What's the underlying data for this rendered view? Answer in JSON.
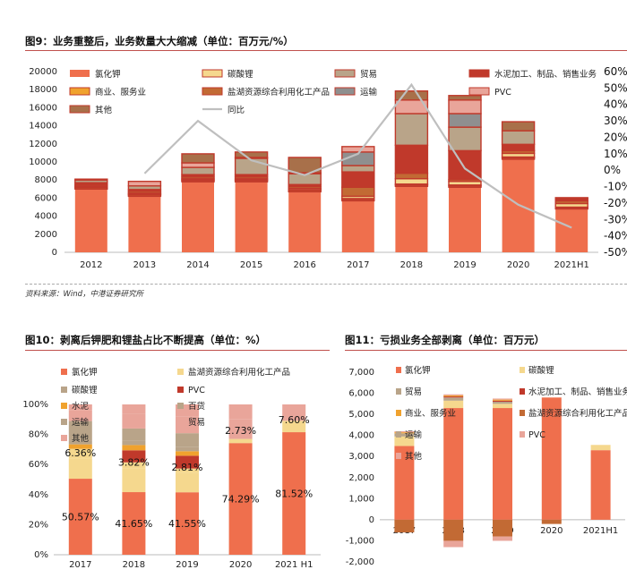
{
  "fig9": {
    "title": "图9：业务重整后，业务数量大大缩减（单位：百万元/%）",
    "source": "资料来源：Wind，中港证券研究所"
  },
  "fig10": {
    "title": "图10：剥离后钾肥和锂盐占比不断提高（单位：%）"
  },
  "fig11": {
    "title": "图11：亏损业务全部剥离（单位：百万元）"
  },
  "colors": {
    "kcl": "#ef6f4d",
    "li2co3": "#f5d88e",
    "trade": "#b9a489",
    "cement": "#c0392b",
    "commerce": "#f0a22e",
    "saltlake": "#c26a34",
    "transport": "#8f8f8f",
    "pvc": "#e9a59a",
    "other": "#a8704a",
    "line": "#bfbfbf",
    "accent": "#c0504d"
  },
  "chart_data": [
    {
      "type": "bar",
      "stacked": true,
      "categories": [
        "2012",
        "2013",
        "2014",
        "2015",
        "2016",
        "2017",
        "2018",
        "2019",
        "2020",
        "2021H1"
      ],
      "ylim": [
        0,
        20000
      ],
      "yticks": [
        "0",
        "2000",
        "4000",
        "6000",
        "8000",
        "10000",
        "12000",
        "14000",
        "16000",
        "18000",
        "20000"
      ],
      "y2lim": [
        -50,
        60
      ],
      "y2ticks": [
        "-50%",
        "-40%",
        "-30%",
        "-20%",
        "-10%",
        "0%",
        "10%",
        "20%",
        "30%",
        "40%",
        "50%",
        "60%"
      ],
      "series": [
        {
          "name": "氯化钾",
          "key": "kcl",
          "values": [
            7000,
            6200,
            7800,
            7800,
            6700,
            5700,
            7300,
            7200,
            10300,
            4800
          ]
        },
        {
          "name": "商业、服务业",
          "key": "commerce",
          "values": [
            150,
            150,
            150,
            150,
            150,
            150,
            150,
            150,
            150,
            100
          ]
        },
        {
          "name": "其他",
          "key": "other",
          "values": [
            100,
            100,
            100,
            100,
            100,
            100,
            100,
            100,
            100,
            100
          ]
        },
        {
          "name": "碳酸锂",
          "key": "li2co3",
          "values": [
            100,
            100,
            150,
            150,
            150,
            250,
            600,
            400,
            400,
            400
          ]
        },
        {
          "name": "盐湖资源综合利用化工产品",
          "key": "saltlake",
          "values": [
            150,
            200,
            200,
            200,
            200,
            1000,
            600,
            200,
            300,
            300
          ]
        },
        {
          "name": "水泥加工、制品、销售业务",
          "key": "cement",
          "values": [
            200,
            200,
            200,
            200,
            200,
            1700,
            3100,
            3200,
            700,
            250
          ]
        },
        {
          "name": "贸易",
          "key": "trade",
          "values": [
            300,
            400,
            800,
            1800,
            1200,
            700,
            3500,
            2600,
            1500,
            0
          ]
        },
        {
          "name": "运输",
          "key": "transport",
          "values": [
            0,
            0,
            0,
            0,
            0,
            1500,
            0,
            1500,
            0,
            0
          ]
        },
        {
          "name": "PVC",
          "key": "pvc",
          "values": [
            0,
            500,
            500,
            100,
            100,
            600,
            1500,
            1500,
            0,
            0
          ]
        },
        {
          "name": "其他",
          "key": "other",
          "values": [
            100,
            0,
            1000,
            600,
            1700,
            0,
            1000,
            500,
            1000,
            100
          ]
        }
      ],
      "line": {
        "name": "同比",
        "y2_values": [
          null,
          -2,
          30,
          6,
          -3,
          10,
          52,
          1,
          -21,
          -35
        ]
      },
      "legend": [
        "氯化钾",
        "碳酸锂",
        "贸易",
        "水泥加工、制品、销售业务",
        "商业、服务业",
        "盐湖资源综合利用化工产品",
        "运输",
        "PVC",
        "其他",
        "同比"
      ]
    },
    {
      "type": "bar",
      "stacked": true,
      "percent": true,
      "categories": [
        "2017",
        "2018",
        "2019",
        "2020",
        "2021 H1"
      ],
      "ylim": [
        0,
        100
      ],
      "yticks": [
        "0%",
        "20%",
        "40%",
        "60%",
        "80%",
        "100%"
      ],
      "series": [
        {
          "name": "氯化钾",
          "key": "kcl",
          "values": [
            50.57,
            41.65,
            41.55,
            74.29,
            81.52
          ]
        },
        {
          "name": "盐湖资源综合利用化工产品",
          "key": "li2co3",
          "values": [
            13.5,
            16.0,
            13.0,
            0,
            0
          ]
        },
        {
          "name": "碳酸锂",
          "key": "li2co3",
          "values": [
            6.36,
            3.82,
            2.81,
            2.73,
            7.6
          ]
        },
        {
          "name": "PVC",
          "key": "cement",
          "values": [
            0,
            8.0,
            8.5,
            0,
            0
          ]
        },
        {
          "name": "水泥",
          "key": "commerce",
          "values": [
            3.0,
            3.5,
            3.0,
            0,
            0
          ]
        },
        {
          "name": "百货",
          "key": "trade",
          "values": [
            2.5,
            3.0,
            3.0,
            0,
            0
          ]
        },
        {
          "name": "运输",
          "key": "trade",
          "values": [
            13.0,
            8.0,
            9.0,
            0,
            0
          ]
        },
        {
          "name": "贸易",
          "key": "pvc",
          "values": [
            7.0,
            10.0,
            11.0,
            13.0,
            0
          ]
        },
        {
          "name": "其他",
          "key": "pvc",
          "values": [
            4.07,
            6.03,
            8.14,
            9.98,
            10.88
          ]
        }
      ],
      "data_labels": {
        "kcl": [
          "50.57%",
          "41.65%",
          "41.55%",
          "74.29%",
          "81.52%"
        ],
        "li2co3": [
          "6.36%",
          "3.82%",
          "2.81%",
          "2.73%",
          "7.60%"
        ]
      },
      "legend": [
        "氯化钾",
        "盐湖资源综合利用化工产品",
        "碳酸锂",
        "PVC",
        "水泥",
        "百货",
        "运输",
        "贸易",
        "其他"
      ]
    },
    {
      "type": "bar",
      "stacked": true,
      "categories": [
        "2017",
        "2018",
        "2019",
        "2020",
        "2021H1"
      ],
      "ylim": [
        -2000,
        7000
      ],
      "yticks": [
        "-2,000",
        "-1,000",
        "0",
        "1,000",
        "2,000",
        "3,000",
        "4,000",
        "5,000",
        "6,000",
        "7,000"
      ],
      "series": [
        {
          "name": "氯化钾",
          "key": "kcl",
          "values": [
            3500,
            5300,
            5300,
            5800,
            3300
          ]
        },
        {
          "name": "碳酸锂",
          "key": "li2co3",
          "values": [
            450,
            350,
            200,
            0,
            250
          ]
        },
        {
          "name": "贸易",
          "key": "trade",
          "values": [
            150,
            150,
            100,
            0,
            0
          ]
        },
        {
          "name": "水泥加工、制品、销售业务",
          "key": "cement",
          "values": [
            0,
            50,
            50,
            0,
            0
          ]
        },
        {
          "name": "商业、服务业",
          "key": "commerce",
          "values": [
            50,
            50,
            50,
            0,
            0
          ]
        },
        {
          "name": "盐湖资源综合利用化工产品",
          "key": "saltlake",
          "values": [
            -600,
            -1000,
            -800,
            -200,
            0
          ]
        },
        {
          "name": "运输",
          "key": "transport",
          "values": [
            0,
            0,
            0,
            0,
            0
          ]
        },
        {
          "name": "PVC",
          "key": "pvc",
          "values": [
            0,
            -300,
            -200,
            0,
            0
          ]
        },
        {
          "name": "其他",
          "key": "pvc",
          "values": [
            50,
            50,
            50,
            0,
            0
          ]
        }
      ],
      "legend": [
        "氯化钾",
        "碳酸锂",
        "贸易",
        "水泥加工、制品、销售业务",
        "商业、服务业",
        "盐湖资源综合利用化工产品",
        "运输",
        "PVC",
        "其他"
      ]
    }
  ]
}
